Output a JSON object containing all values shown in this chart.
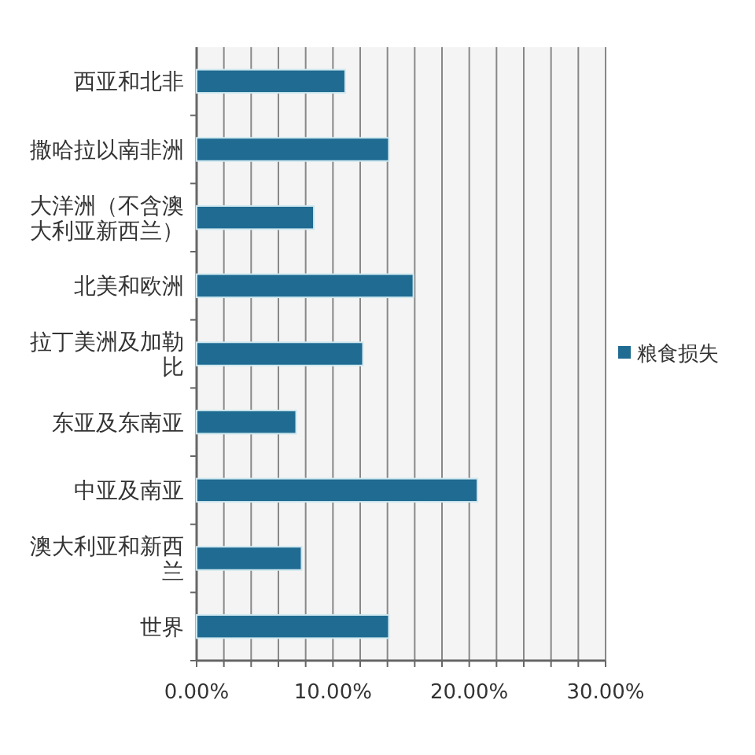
{
  "chart_data": {
    "type": "bar",
    "orientation": "horizontal",
    "categories": [
      "西亚和北非",
      "撒哈拉以南非洲",
      "大洋洲（不含澳大利亚新西兰）",
      "北美和欧洲",
      "拉丁美洲及加勒比",
      "东亚及东南亚",
      "中亚及南亚",
      "澳大利亚和新西兰",
      "世界"
    ],
    "series": [
      {
        "name": "粮食损失",
        "color": "#1f6b92",
        "values": [
          10.9,
          14.1,
          8.6,
          15.9,
          12.2,
          7.3,
          20.6,
          7.7,
          14.1
        ]
      }
    ],
    "xlim": [
      0,
      30
    ],
    "xticks": [
      {
        "value": 0,
        "label": "0.00%"
      },
      {
        "value": 2,
        "label": null
      },
      {
        "value": 4,
        "label": null
      },
      {
        "value": 6,
        "label": null
      },
      {
        "value": 8,
        "label": null
      },
      {
        "value": 10,
        "label": "10.00%"
      },
      {
        "value": 12,
        "label": null
      },
      {
        "value": 14,
        "label": null
      },
      {
        "value": 16,
        "label": null
      },
      {
        "value": 18,
        "label": null
      },
      {
        "value": 20,
        "label": "20.00%"
      },
      {
        "value": 22,
        "label": null
      },
      {
        "value": 24,
        "label": null
      },
      {
        "value": 26,
        "label": null
      },
      {
        "value": 28,
        "label": null
      },
      {
        "value": 30,
        "label": "30.00%"
      }
    ],
    "grid": "x",
    "legend": "right"
  }
}
